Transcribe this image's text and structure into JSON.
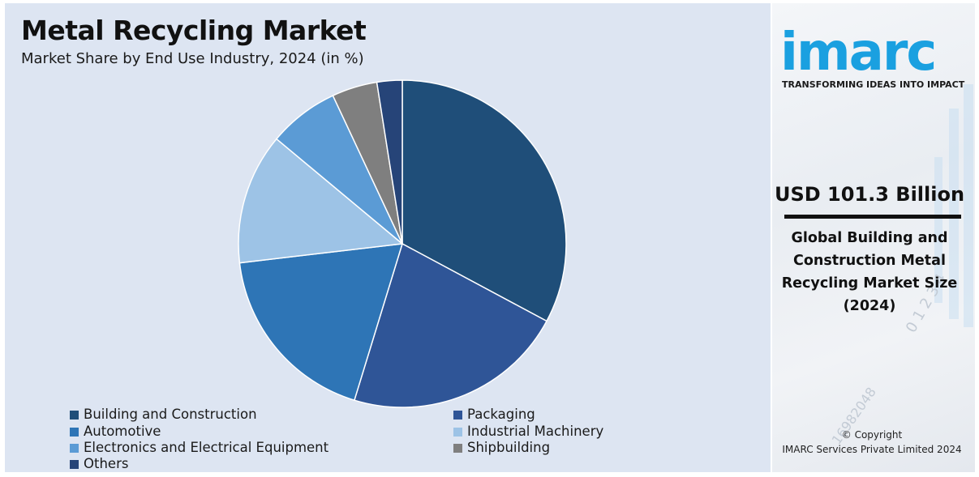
{
  "header": {
    "title": "Metal Recycling Market",
    "subtitle": "Market Share by End Use Industry, 2024 (in %)"
  },
  "chart_data": {
    "type": "pie",
    "title": "Metal Recycling Market",
    "subtitle": "Market Share by End Use Industry, 2024 (in %)",
    "categories": [
      "Building and Construction",
      "Packaging",
      "Automotive",
      "Industrial Machinery",
      "Electronics and Electrical Equipment",
      "Shipbuilding",
      "Others"
    ],
    "values": [
      33,
      22,
      18.5,
      13,
      7,
      4.5,
      2.5
    ],
    "colors": [
      "#1f4e79",
      "#2f5597",
      "#2e75b6",
      "#9dc3e6",
      "#5b9bd5",
      "#7f7f7f",
      "#264478"
    ],
    "legend_position": "bottom"
  },
  "legend": {
    "items": [
      {
        "label": "Building and Construction",
        "color": "#1f4e79"
      },
      {
        "label": "Packaging",
        "color": "#2f5597"
      },
      {
        "label": "Automotive",
        "color": "#2e75b6"
      },
      {
        "label": "Industrial Machinery",
        "color": "#9dc3e6"
      },
      {
        "label": "Electronics and Electrical Equipment",
        "color": "#5b9bd5"
      },
      {
        "label": "Shipbuilding",
        "color": "#7f7f7f"
      },
      {
        "label": "Others",
        "color": "#264478"
      }
    ]
  },
  "sidebar": {
    "logo_text": "imarc",
    "logo_tagline": "TRANSFORMING IDEAS INTO IMPACT",
    "logo_color": "#1aa0e0",
    "market_size": "USD 101.3 Billion",
    "description": "Global Building and Construction Metal Recycling Market Size (2024)",
    "copyright_line1": "© Copyright",
    "copyright_line2": "IMARC Services Private Limited 2024"
  }
}
